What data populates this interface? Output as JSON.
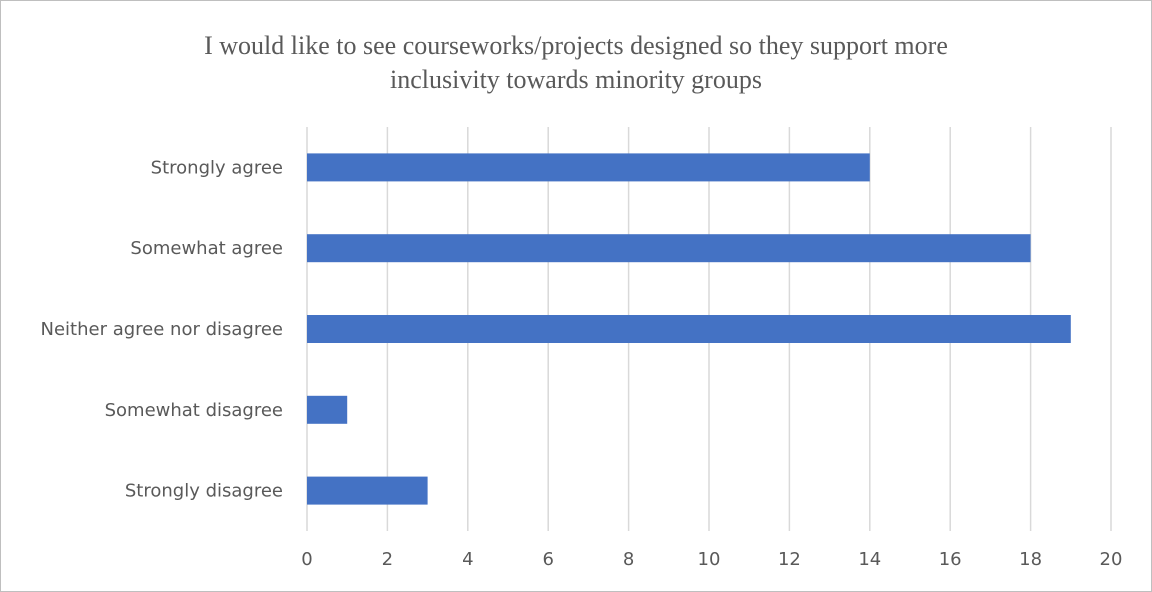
{
  "chart_data": {
    "type": "bar",
    "orientation": "horizontal",
    "title_lines": [
      "I would like to see courseworks/projects designed so they support more",
      "inclusivity towards minority groups"
    ],
    "categories": [
      "Strongly agree",
      "Somewhat agree",
      "Neither agree nor disagree",
      "Somewhat disagree",
      "Strongly disagree"
    ],
    "values": [
      14,
      18,
      19,
      1,
      3
    ],
    "xlim": [
      0,
      20
    ],
    "xticks": [
      "0",
      "2",
      "4",
      "6",
      "8",
      "10",
      "12",
      "14",
      "16",
      "18",
      "20"
    ],
    "xlabel": "",
    "ylabel": "",
    "grid": "vertical",
    "legend": "none",
    "bar_color": "#4472C4",
    "grid_color": "#D9D9D9"
  }
}
